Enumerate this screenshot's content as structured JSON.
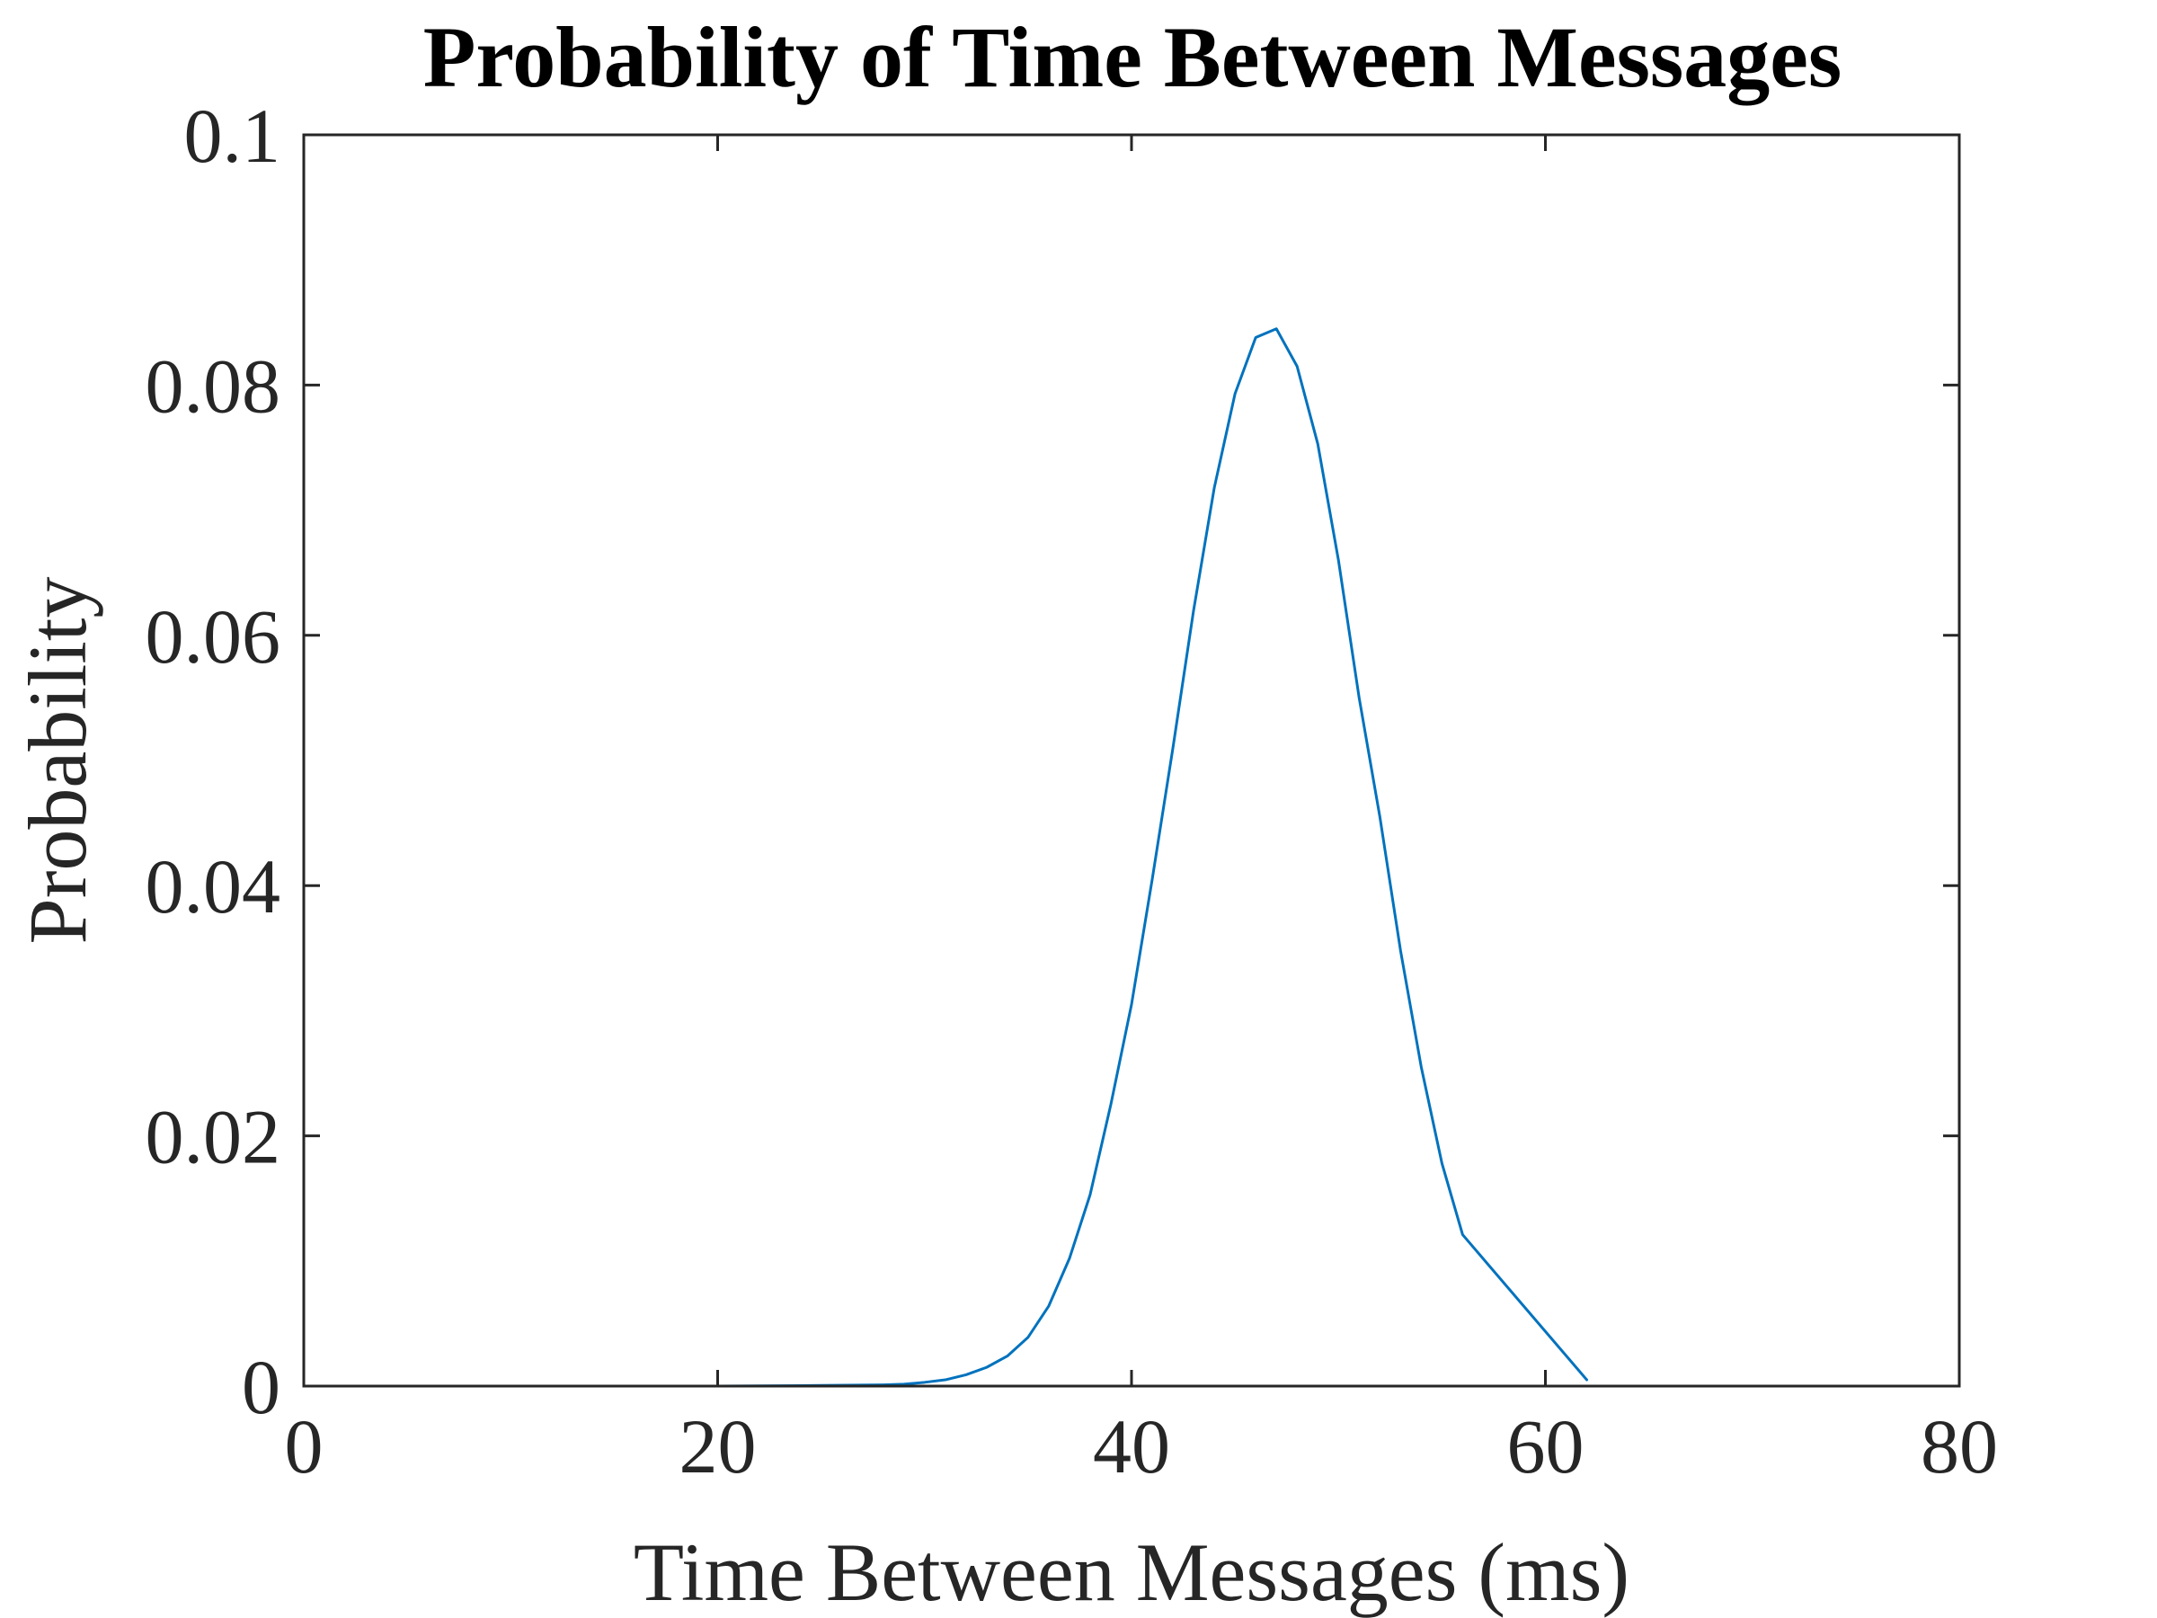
{
  "chart_data": {
    "type": "line",
    "title": "Probability of Time Between Messages",
    "xlabel": "Time Between Messages (ms)",
    "ylabel": "Probability",
    "xlim": [
      0,
      80
    ],
    "ylim": [
      0,
      0.1
    ],
    "xticks": [
      0,
      20,
      40,
      60,
      80
    ],
    "xtick_labels": [
      "0",
      "20",
      "40",
      "60",
      "80"
    ],
    "yticks": [
      0,
      0.02,
      0.04,
      0.06,
      0.08,
      0.1
    ],
    "ytick_labels": [
      "0",
      "0.02",
      "0.04",
      "0.06",
      "0.08",
      "0.1"
    ],
    "grid": false,
    "box": true,
    "colors": {
      "series": "#0072BD",
      "axes": "#262626",
      "title": "#000000"
    },
    "series": [
      {
        "x": [
          0,
          5,
          10,
          15,
          20,
          25,
          28,
          29,
          30,
          31,
          32,
          33,
          34,
          35,
          36,
          37,
          38,
          39,
          40,
          41,
          42,
          43,
          44,
          45,
          46,
          47,
          48,
          49,
          50,
          51,
          52,
          53,
          54,
          55,
          56,
          62
        ],
        "y": [
          0,
          0,
          0,
          0,
          0,
          5e-05,
          0.0001,
          0.00015,
          0.0003,
          0.0005,
          0.0009,
          0.0015,
          0.0024,
          0.0039,
          0.0064,
          0.0102,
          0.0153,
          0.0225,
          0.0305,
          0.0405,
          0.051,
          0.062,
          0.0718,
          0.0793,
          0.0838,
          0.0845,
          0.0815,
          0.0753,
          0.066,
          0.055,
          0.0455,
          0.0348,
          0.0255,
          0.0178,
          0.0121,
          0.0005
        ]
      }
    ]
  }
}
